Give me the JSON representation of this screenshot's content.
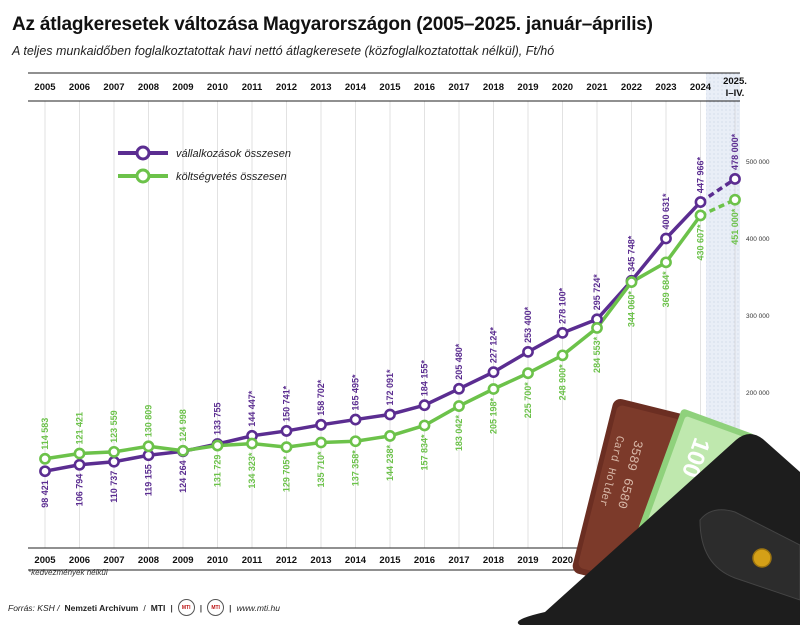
{
  "title": "Az átlagkeresetek változása Magyarországon (2005–2025. január–április)",
  "subtitle": "A teljes munkaidőben foglalkoztatottak havi nettó átlagkeresete (közfoglalkoztatottak nélkül), Ft/hó",
  "footnote": "*kedvezmények nélkül",
  "footer": {
    "source_lead": "Forrás: KSH /",
    "source_archive": "Nemzeti Archívum",
    "source_sep": "/",
    "source_mti": "MTI",
    "logo1": "MTI",
    "logo2": "MTI",
    "website": "www.mti.hu"
  },
  "chart_data": {
    "type": "line",
    "x": [
      "2005",
      "2006",
      "2007",
      "2008",
      "2009",
      "2010",
      "2011",
      "2012",
      "2013",
      "2014",
      "2015",
      "2016",
      "2017",
      "2018",
      "2019",
      "2020",
      "2021",
      "2022",
      "2023",
      "2024",
      "2025. I–IV."
    ],
    "ylim": [
      0,
      520000
    ],
    "yticks": [
      "100 000",
      "200 000",
      "300 000",
      "400 000",
      "500 000"
    ],
    "ytick_values": [
      100000,
      200000,
      300000,
      400000,
      500000
    ],
    "last_period_dashed": true,
    "legend_position": "top-left",
    "series": [
      {
        "name": "vállalkozások összesen",
        "color": "#5b2d91",
        "values": [
          98421,
          106794,
          110737,
          119155,
          124264,
          133755,
          144447,
          150741,
          158702,
          165495,
          172091,
          184155,
          205480,
          227124,
          253400,
          278100,
          295724,
          345748,
          400631,
          447966,
          478000
        ],
        "labels": [
          "98 421",
          "106 794",
          "110 737",
          "119 155",
          "124 264",
          "133 755",
          "144 447*",
          "150 741*",
          "158 702*",
          "165 495*",
          "172 091*",
          "184 155*",
          "205 480*",
          "227 124*",
          "253 400*",
          "278 100*",
          "295 724*",
          "345 748*",
          "400 631*",
          "447 966*",
          "478 000*"
        ]
      },
      {
        "name": "költségvetés összesen",
        "color": "#6cc24a",
        "values": [
          114583,
          121421,
          123559,
          130809,
          124998,
          131729,
          134323,
          129705,
          135710,
          137358,
          144238,
          157834,
          183042,
          205198,
          225700,
          248900,
          284553,
          344060,
          369684,
          430607,
          451000
        ],
        "labels": [
          "114 583",
          "121 421",
          "123 559",
          "130 809",
          "124 998",
          "131 729",
          "134 323*",
          "129 705*",
          "135 710*",
          "137 358*",
          "144 238*",
          "157 834*",
          "183 042*",
          "205 198*",
          "225 700*",
          "248 900*",
          "284 553*",
          "344 060*",
          "369 684*",
          "430 607*",
          "451 000*"
        ]
      }
    ]
  }
}
